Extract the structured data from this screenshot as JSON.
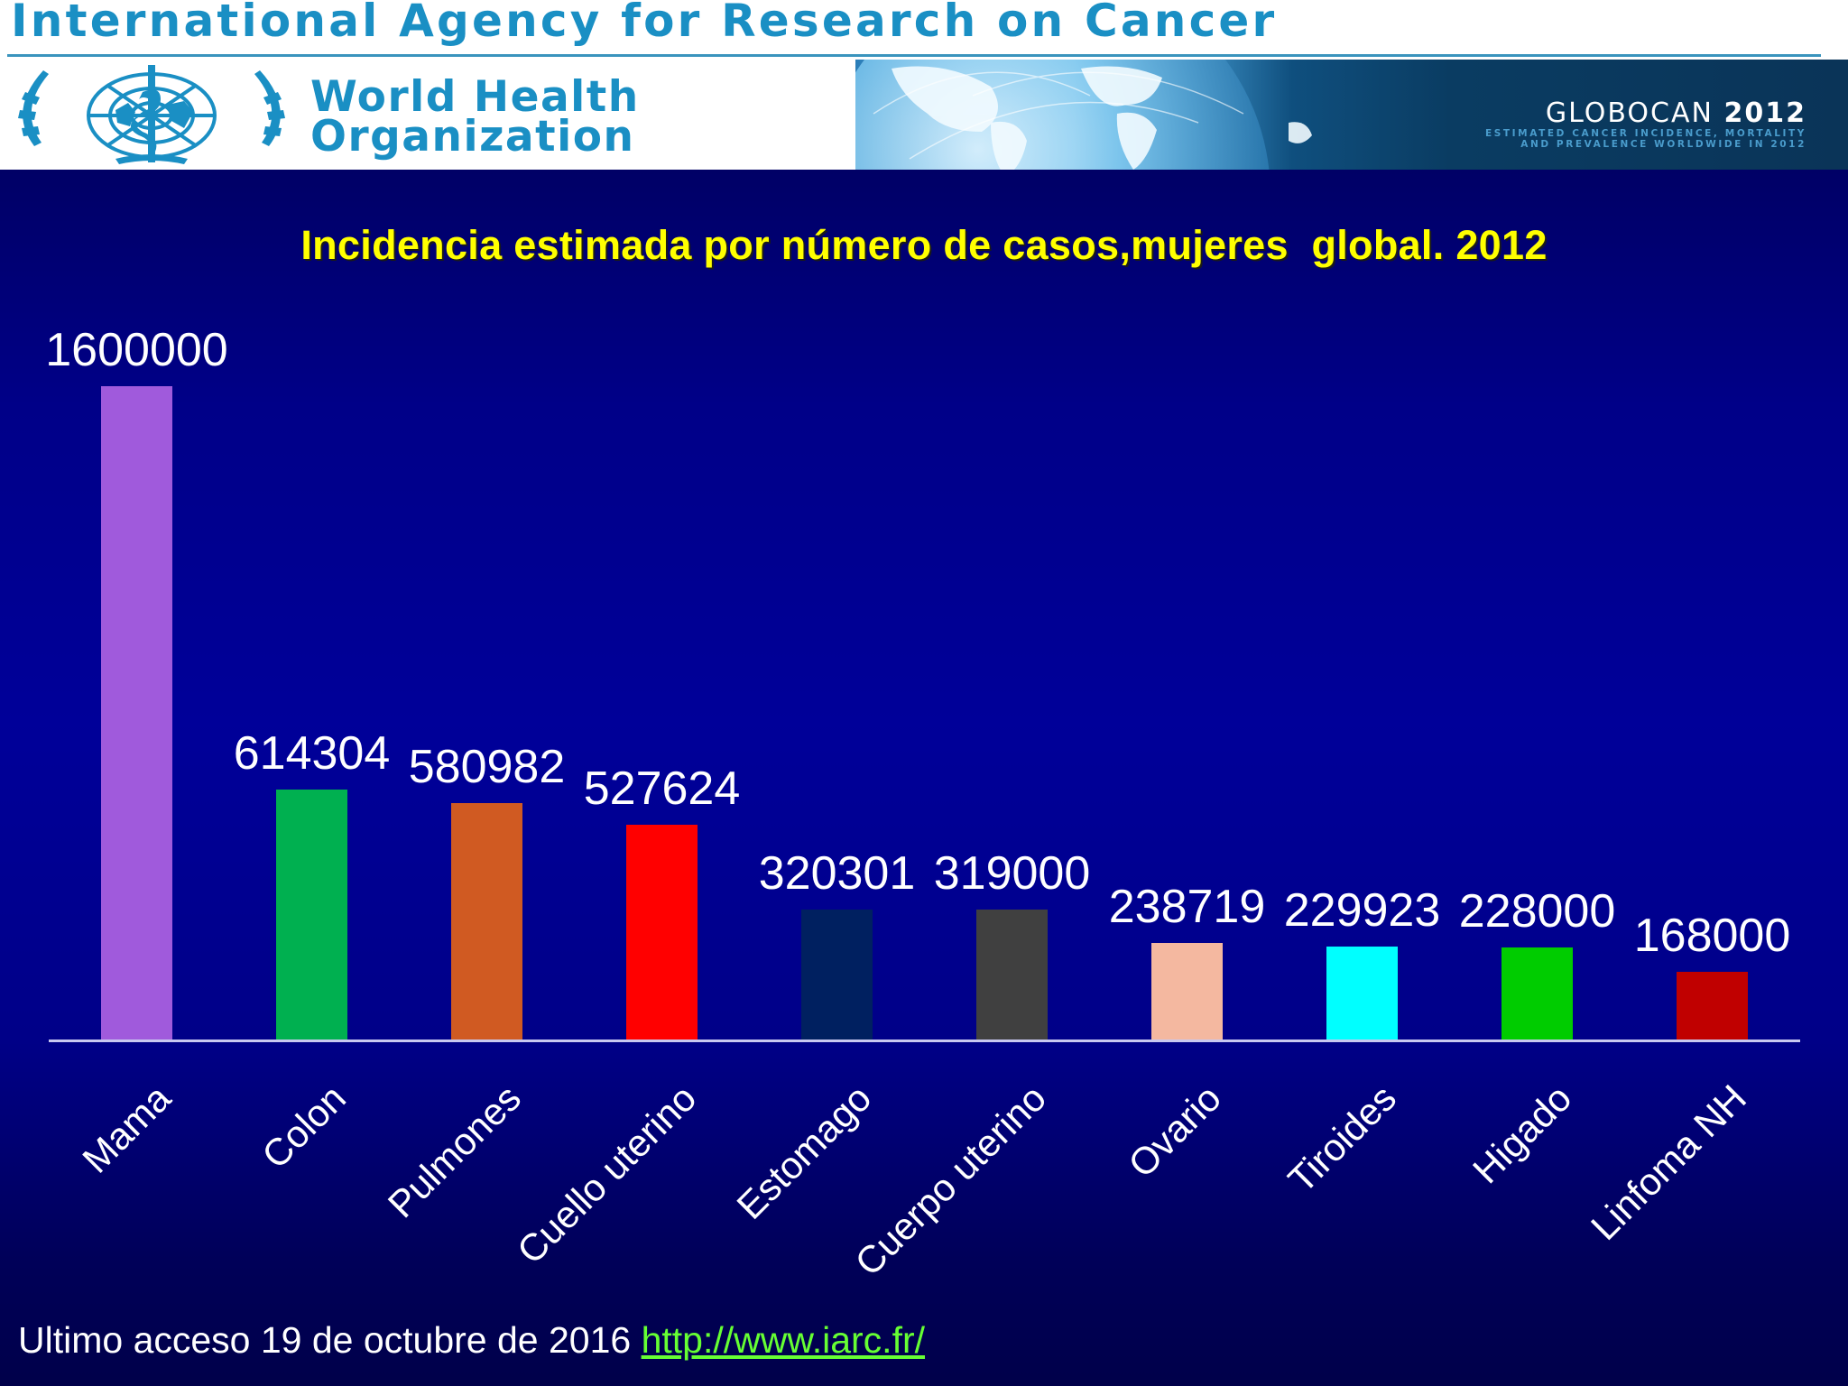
{
  "header": {
    "agency_title": "International Agency for Research on Cancer",
    "who_name_line1": "World Health",
    "who_name_line2": "Organization",
    "globocan_name": "GLOBOCAN",
    "globocan_year": "2012",
    "globocan_subtitle_line1": "ESTIMATED CANCER INCIDENCE, MORTALITY",
    "globocan_subtitle_line2": "AND PREVALENCE WORLDWIDE IN 2012"
  },
  "footer": {
    "text": "Ultimo acceso 19 de octubre de 2016 ",
    "link_text": "http://www.iarc.fr/"
  },
  "colors": {
    "title": "#ffff00",
    "background": "#000099",
    "link": "#66ff33",
    "axis": "#c8c8f0"
  },
  "chart_data": {
    "type": "bar",
    "title": "Incidencia estimada por número de casos,mujeres  global. 2012",
    "xlabel": "",
    "ylabel": "",
    "grid": false,
    "legend": "none",
    "ylim": [
      0,
      1600000
    ],
    "categories": [
      "Mama",
      "Colon",
      "Pulmones",
      "Cuello uterino",
      "Estomago",
      "Cuerpo uterino",
      "Ovario",
      "Tiroides",
      "Higado",
      "Linfoma NH"
    ],
    "values": [
      1600000,
      614304,
      580982,
      527624,
      320301,
      319000,
      238719,
      229923,
      228000,
      168000
    ],
    "value_labels": [
      "1600000",
      "614304",
      "580982",
      "527624",
      "320301",
      "319000",
      "238719",
      "229923",
      "228000",
      "168000"
    ],
    "bar_colors": [
      "#a05adc",
      "#00b050",
      "#d05a22",
      "#ff0000",
      "#002060",
      "#404040",
      "#f4b8a0",
      "#00ffff",
      "#00cc00",
      "#c00000"
    ]
  }
}
